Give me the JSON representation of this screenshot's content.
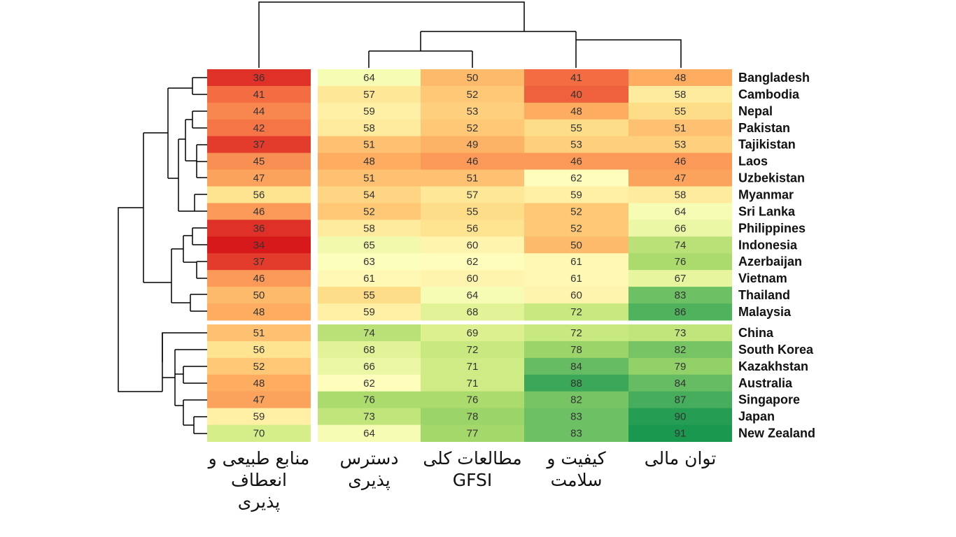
{
  "chart_data": {
    "type": "heatmap",
    "title": "",
    "columns": [
      "منابع طبیعی و انعطاف پذیری",
      "دسترس پذیری",
      "مطالعات کلی GFSI",
      "کیفیت و سلامت",
      "توان مالی"
    ],
    "column_labels_lines": [
      [
        "منابع طبیعی و",
        "انعطاف",
        "پذیری"
      ],
      [
        "دسترس",
        "پذیری"
      ],
      [
        "مطالعات کلی",
        "GFSI"
      ],
      [
        "کیفیت و",
        "سلامت"
      ],
      [
        "توان مالی"
      ]
    ],
    "rows": [
      "Bangladesh",
      "Cambodia",
      "Nepal",
      "Pakistan",
      "Tajikistan",
      "Laos",
      "Uzbekistan",
      "Myanmar",
      "Sri Lanka",
      "Philippines",
      "Indonesia",
      "Azerbaijan",
      "Vietnam",
      "Thailand",
      "Malaysia",
      "China",
      "South Korea",
      "Kazakhstan",
      "Australia",
      "Singapore",
      "Japan",
      "New Zealand"
    ],
    "values": [
      [
        36,
        64,
        50,
        41,
        48
      ],
      [
        41,
        57,
        52,
        40,
        58
      ],
      [
        44,
        59,
        53,
        48,
        55
      ],
      [
        42,
        58,
        52,
        55,
        51
      ],
      [
        37,
        51,
        49,
        53,
        53
      ],
      [
        45,
        48,
        46,
        46,
        46
      ],
      [
        47,
        51,
        51,
        62,
        47
      ],
      [
        56,
        54,
        57,
        59,
        58
      ],
      [
        46,
        52,
        55,
        52,
        64
      ],
      [
        36,
        58,
        56,
        52,
        66
      ],
      [
        34,
        65,
        60,
        50,
        74
      ],
      [
        37,
        63,
        62,
        61,
        76
      ],
      [
        46,
        61,
        60,
        61,
        67
      ],
      [
        50,
        55,
        64,
        60,
        83
      ],
      [
        48,
        59,
        68,
        72,
        86
      ],
      [
        51,
        74,
        69,
        72,
        73
      ],
      [
        56,
        68,
        72,
        78,
        82
      ],
      [
        52,
        66,
        71,
        84,
        79
      ],
      [
        48,
        62,
        71,
        88,
        84
      ],
      [
        47,
        76,
        76,
        82,
        87
      ],
      [
        59,
        73,
        78,
        83,
        90
      ],
      [
        70,
        64,
        77,
        83,
        91
      ]
    ],
    "row_split_after": 15,
    "col_split_after": 1,
    "value_range": [
      34,
      91
    ],
    "colorscale": [
      "#d7191c",
      "#f46d43",
      "#fdae61",
      "#fee08b",
      "#ffffbf",
      "#d9ef8b",
      "#a6d96a",
      "#66bd63",
      "#1a9850"
    ]
  }
}
